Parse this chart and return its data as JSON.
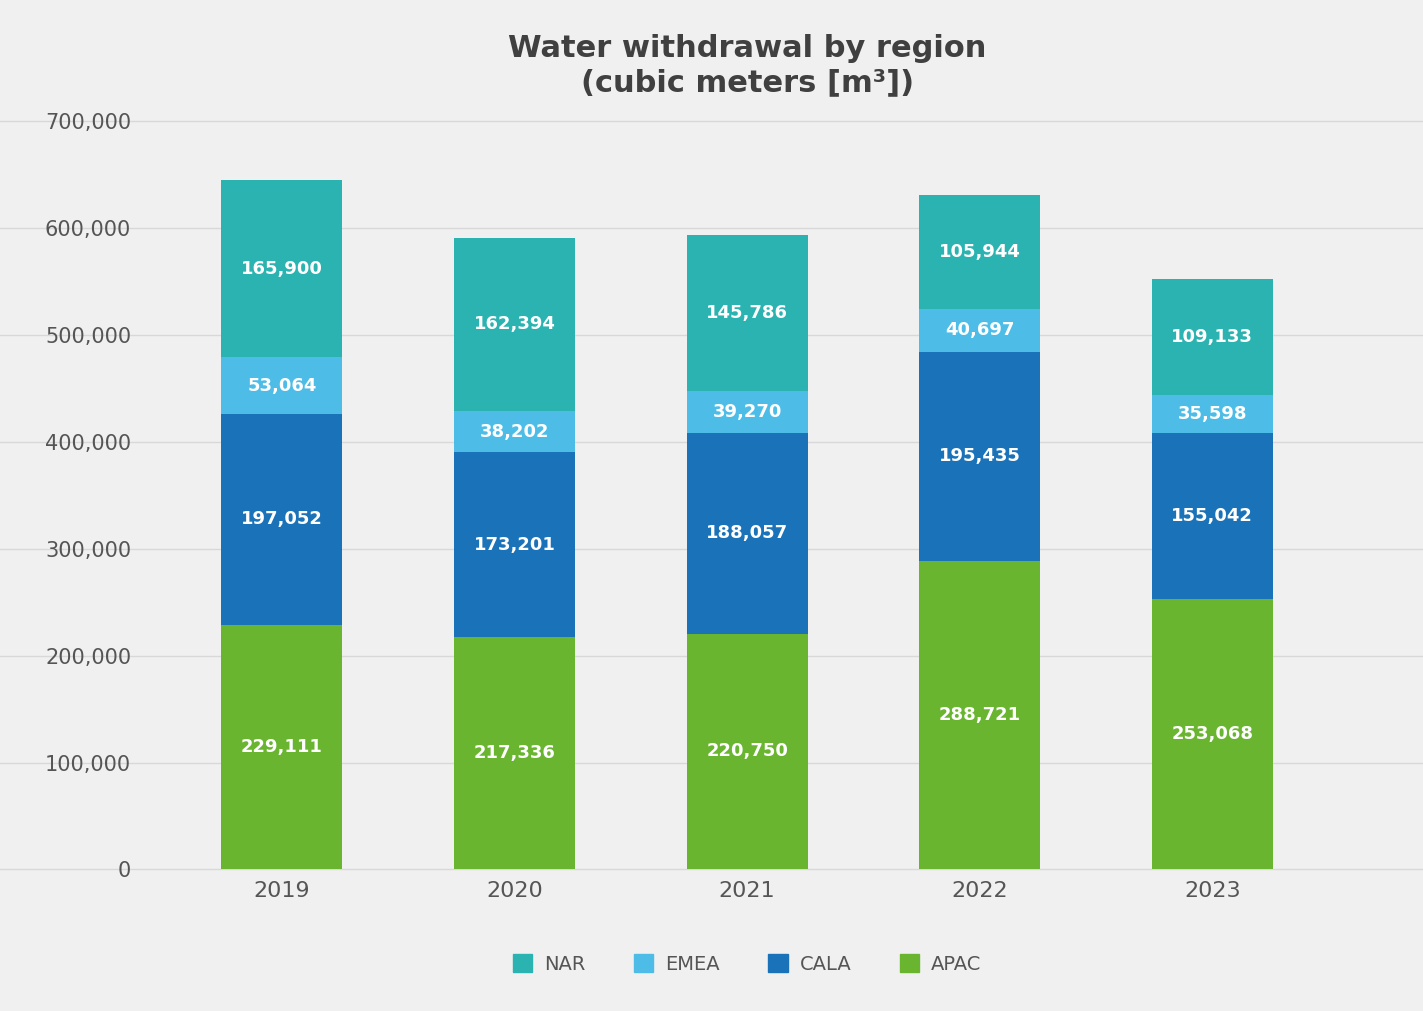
{
  "title": "Water withdrawal by region\n(cubic meters [m³])",
  "years": [
    2019,
    2020,
    2021,
    2022,
    2023
  ],
  "segments": {
    "APAC": [
      229111,
      217336,
      220750,
      288721,
      253068
    ],
    "CALA": [
      197052,
      173201,
      188057,
      195435,
      155042
    ],
    "EMEA": [
      53064,
      38202,
      39270,
      40697,
      35598
    ],
    "NAR": [
      165900,
      162394,
      145786,
      105944,
      109133
    ]
  },
  "colors": {
    "NAR": "#2ab3b0",
    "EMEA": "#4dbde8",
    "CALA": "#1a72b8",
    "APAC": "#6ab530"
  },
  "background_color": "#f0f0f0",
  "bar_width": 0.52,
  "ylim": [
    0,
    700000
  ],
  "yticks": [
    0,
    100000,
    200000,
    300000,
    400000,
    500000,
    600000,
    700000
  ],
  "ytick_labels": [
    "0",
    "100,000",
    "200,000",
    "300,000",
    "400,000",
    "500,000",
    "600,000",
    "700,000"
  ],
  "title_fontsize": 22,
  "tick_fontsize": 15,
  "legend_fontsize": 14,
  "value_fontsize": 13,
  "title_color": "#404040",
  "tick_color": "#555555",
  "value_text_color": "#ffffff",
  "legend_text_color": "#555555",
  "grid_color": "#d8d8d8",
  "grid_linewidth": 1.0
}
